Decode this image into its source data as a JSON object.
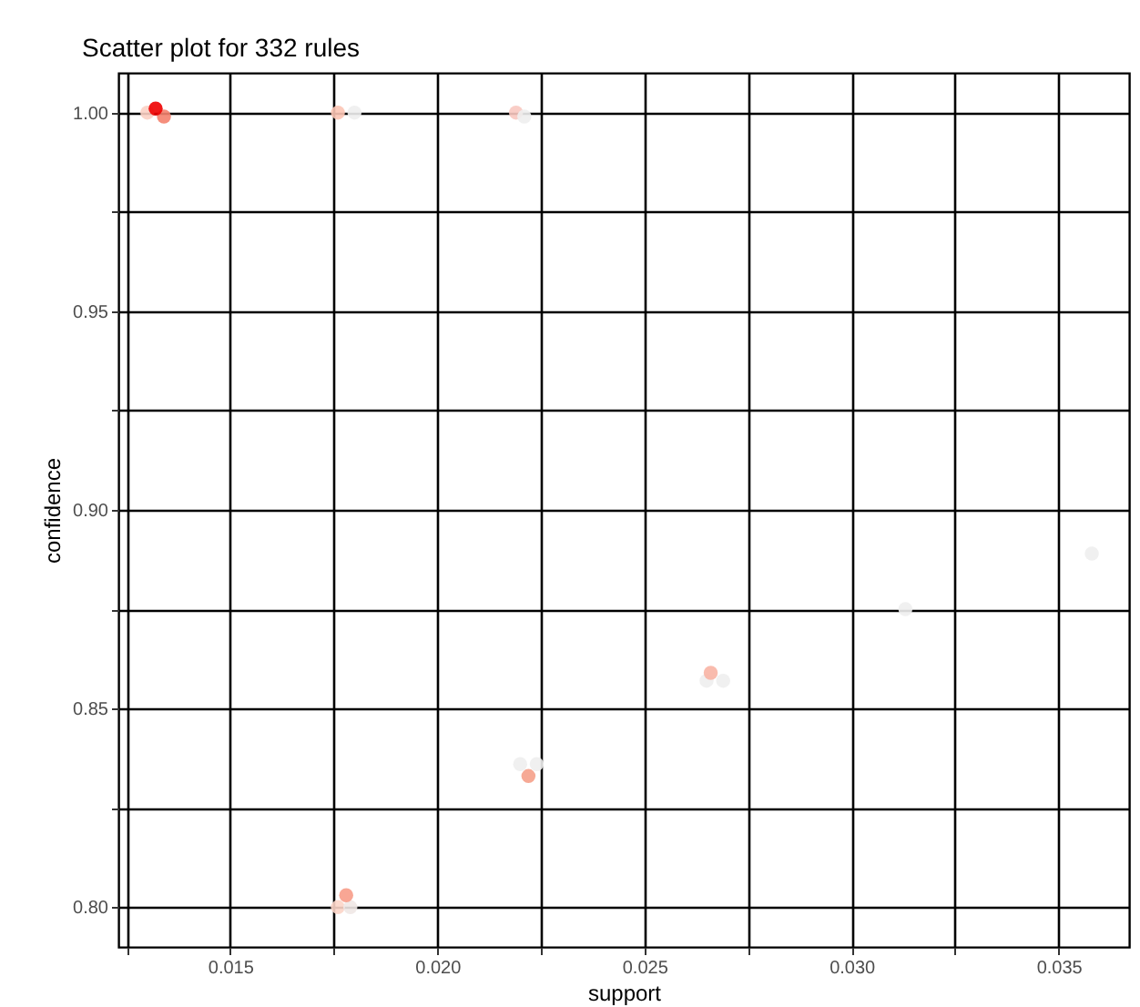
{
  "chart_data": {
    "type": "scatter",
    "title": "Scatter plot for 332 rules",
    "xlabel": "support",
    "ylabel": "confidence",
    "grid": true,
    "marker": "circle",
    "xlim": [
      0.0123,
      0.0367
    ],
    "ylim": [
      0.79,
      1.01
    ],
    "xticks": [
      {
        "value": 0.0125,
        "label": null
      },
      0.015,
      {
        "value": 0.0175,
        "label": null
      },
      {
        "value": 0.02,
        "label": "0.020"
      },
      {
        "value": 0.0225,
        "label": null
      },
      0.025,
      {
        "value": 0.0275,
        "label": null
      },
      {
        "value": 0.03,
        "label": "0.030"
      },
      {
        "value": 0.0325,
        "label": null
      },
      0.035
    ],
    "yticks": [
      {
        "value": 0.8,
        "label": "0.80"
      },
      {
        "value": 0.825,
        "label": null
      },
      0.85,
      {
        "value": 0.875,
        "label": null
      },
      {
        "value": 0.9,
        "label": "0.90"
      },
      {
        "value": 0.925,
        "label": null
      },
      0.95,
      {
        "value": 0.975,
        "label": null
      },
      {
        "value": 1,
        "label": "1.00"
      }
    ],
    "series": [
      {
        "x": [
          0.013,
          0.0134,
          0.0132,
          0.018,
          0.0176,
          0.0219,
          0.0221,
          0.0265,
          0.0269,
          0.0266,
          0.0313,
          0.0358,
          0.022,
          0.0224,
          0.0222,
          0.0176,
          0.0179,
          0.0178
        ],
        "values": [
          1.0,
          0.999,
          1.001,
          1.0,
          1.0,
          1.0,
          0.999,
          0.857,
          0.857,
          0.859,
          0.875,
          0.889,
          0.836,
          0.836,
          0.833,
          0.8,
          0.8,
          0.803
        ],
        "colors": [
          "#fbd0c4",
          "#f4826e",
          "#ee0000",
          "#eeeeee",
          "#fcc5b5",
          "#f8c8c0",
          "#eeeeee",
          "#eeeeee",
          "#eeeeee",
          "#f8b4a4",
          "#eeeeee",
          "#eeeeee",
          "#eeeeee",
          "#eeeeee",
          "#f5a08a",
          "#fcd5c8",
          "#f0e8e6",
          "#f79c88"
        ]
      }
    ]
  }
}
